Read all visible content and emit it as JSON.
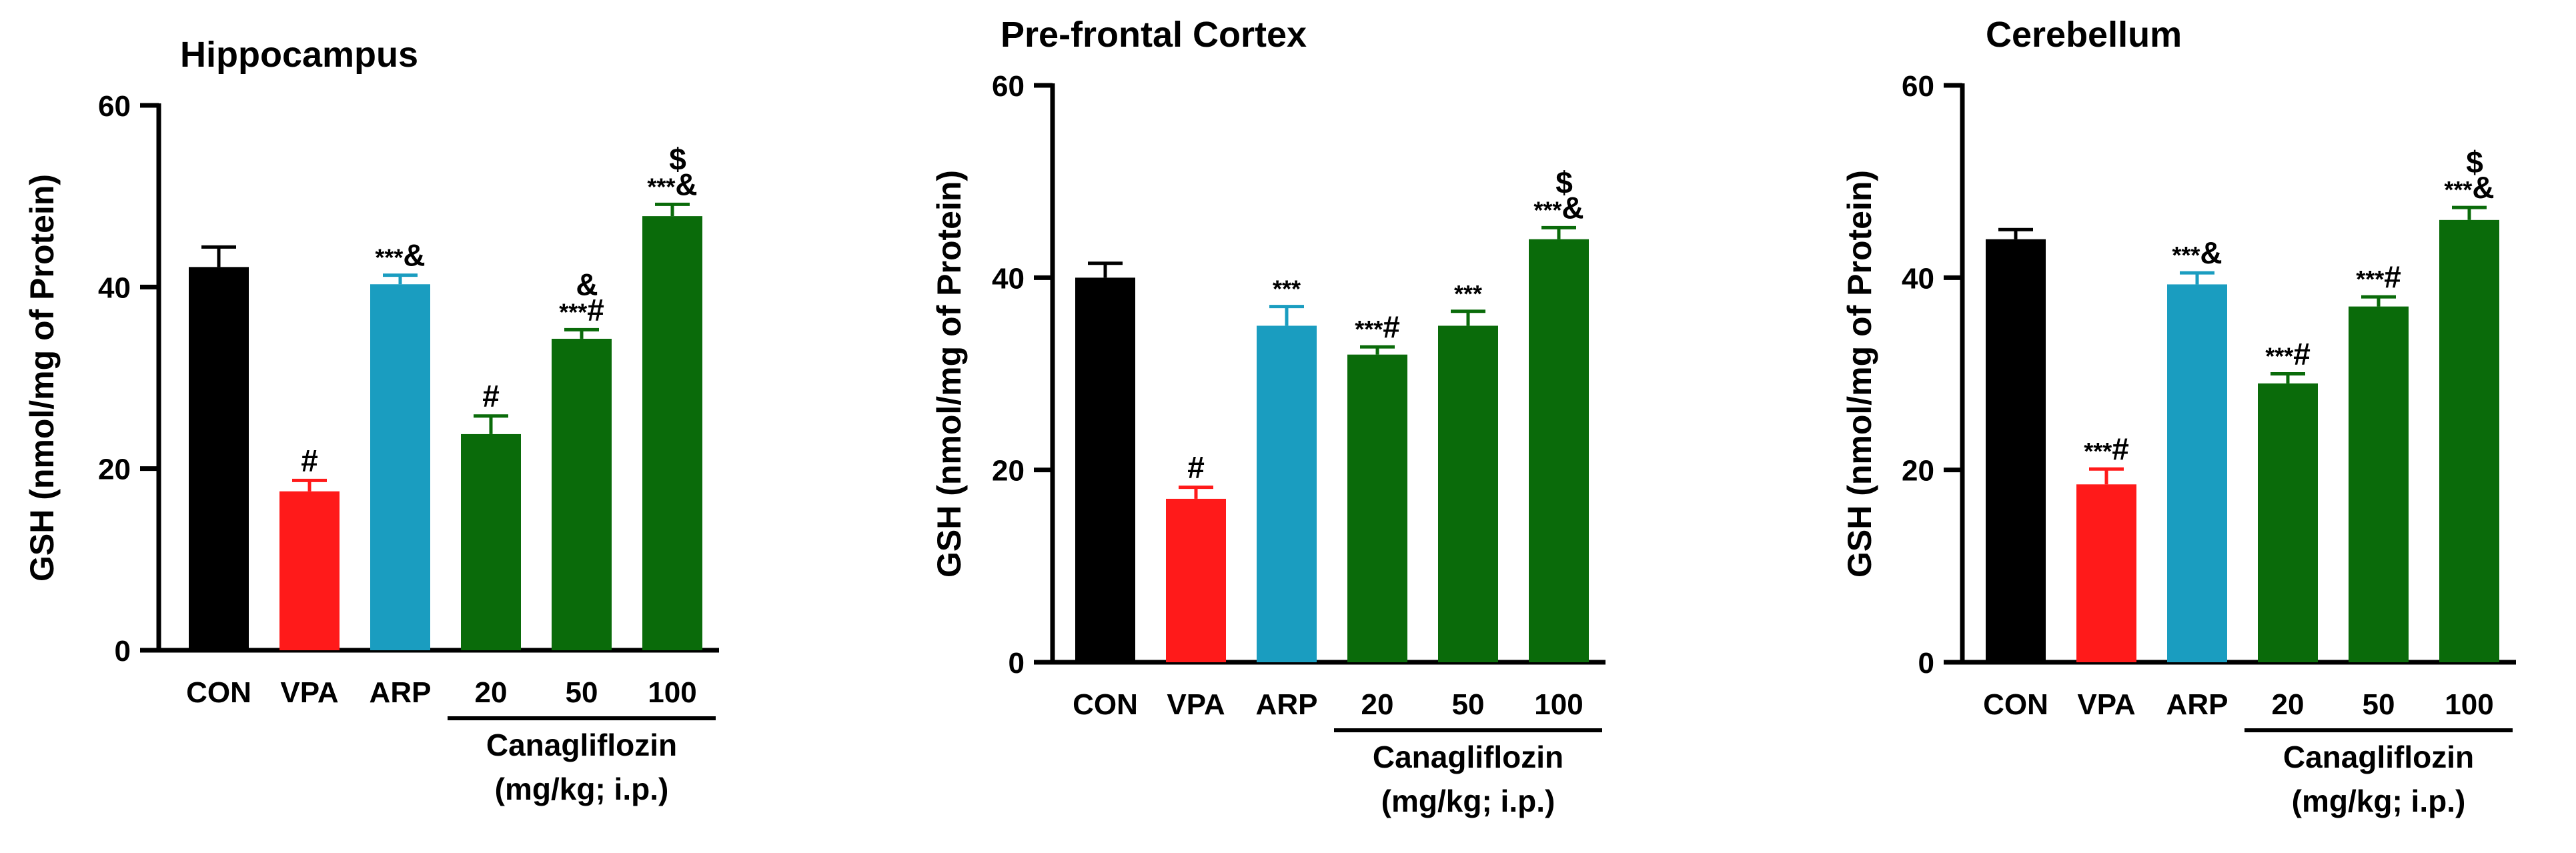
{
  "chart_data": [
    {
      "type": "bar",
      "title": "Hippocampus",
      "ylabel": "GSH (nmol/mg of Protein)",
      "ylim": [
        0,
        60
      ],
      "yticks": [
        "0",
        "20",
        "40",
        "60"
      ],
      "categories": [
        "CON",
        "VPA",
        "ARP",
        "20",
        "50",
        "100"
      ],
      "group_label_line1": "Canagliflozin",
      "group_label_line2": "(mg/kg; i.p.)",
      "values": [
        42.2,
        17.5,
        40.3,
        23.8,
        34.3,
        47.8
      ],
      "errors": [
        2.2,
        1.2,
        1.0,
        2.0,
        1.0,
        1.3
      ],
      "colors": [
        "#000000",
        "#ff1a1a",
        "#1a9dc0",
        "#0a6b0a",
        "#0a6b0a",
        "#0a6b0a"
      ],
      "significance": [
        {
          "top": "",
          "main": ""
        },
        {
          "top": "",
          "main": "#"
        },
        {
          "top": "",
          "main": "***&"
        },
        {
          "top": "",
          "main": "#"
        },
        {
          "top": "&",
          "main": "***#"
        },
        {
          "top": "$",
          "main": "***&"
        }
      ]
    },
    {
      "type": "bar",
      "title": "Pre-frontal Cortex",
      "ylabel": "GSH (nmol/mg of Protein)",
      "ylim": [
        0,
        60
      ],
      "yticks": [
        "0",
        "20",
        "40",
        "60"
      ],
      "categories": [
        "CON",
        "VPA",
        "ARP",
        "20",
        "50",
        "100"
      ],
      "group_label_line1": "Canagliflozin",
      "group_label_line2": "(mg/kg; i.p.)",
      "values": [
        40.0,
        17.0,
        35.0,
        32.0,
        35.0,
        44.0
      ],
      "errors": [
        1.5,
        1.2,
        2.0,
        0.8,
        1.5,
        1.2
      ],
      "colors": [
        "#000000",
        "#ff1a1a",
        "#1a9dc0",
        "#0a6b0a",
        "#0a6b0a",
        "#0a6b0a"
      ],
      "significance": [
        {
          "top": "",
          "main": ""
        },
        {
          "top": "",
          "main": "#"
        },
        {
          "top": "",
          "main": "***"
        },
        {
          "top": "",
          "main": "***#"
        },
        {
          "top": "",
          "main": "***"
        },
        {
          "top": "$",
          "main": "***&"
        }
      ]
    },
    {
      "type": "bar",
      "title": "Cerebellum",
      "ylabel": "GSH (nmol/mg of Protein)",
      "ylim": [
        0,
        60
      ],
      "yticks": [
        "0",
        "20",
        "40",
        "60"
      ],
      "categories": [
        "CON",
        "VPA",
        "ARP",
        "20",
        "50",
        "100"
      ],
      "group_label_line1": "Canagliflozin",
      "group_label_line2": "(mg/kg; i.p.)",
      "values": [
        44.0,
        18.5,
        39.3,
        29.0,
        37.0,
        46.0
      ],
      "errors": [
        1.0,
        1.6,
        1.2,
        1.0,
        1.0,
        1.3
      ],
      "colors": [
        "#000000",
        "#ff1a1a",
        "#1a9dc0",
        "#0a6b0a",
        "#0a6b0a",
        "#0a6b0a"
      ],
      "significance": [
        {
          "top": "",
          "main": ""
        },
        {
          "top": "",
          "main": "***#"
        },
        {
          "top": "",
          "main": "***&"
        },
        {
          "top": "",
          "main": "***#"
        },
        {
          "top": "",
          "main": "***#"
        },
        {
          "top": "$",
          "main": "***&"
        }
      ]
    }
  ]
}
